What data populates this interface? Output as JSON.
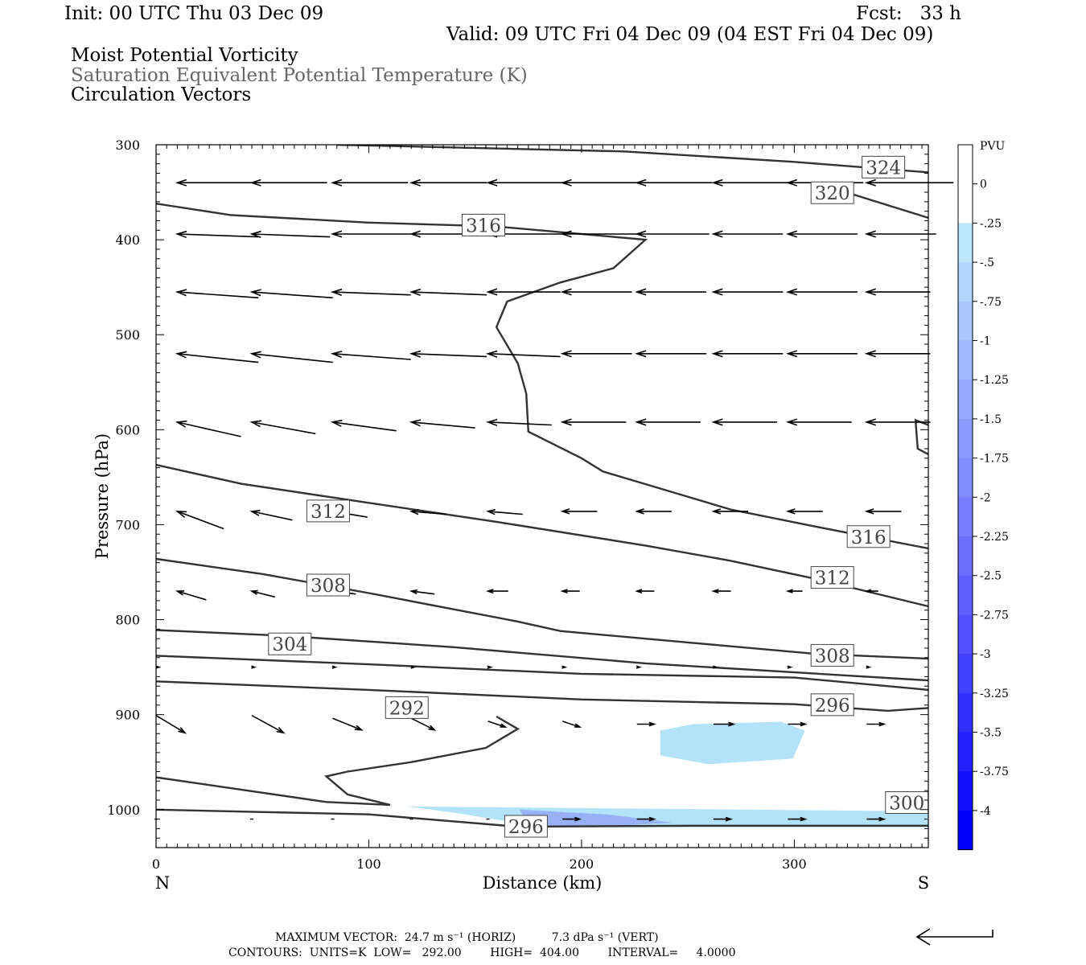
{
  "header": {
    "init": "Init: 00 UTC Thu 03 Dec 09",
    "fcst": "Fcst:   33 h",
    "valid": "Valid: 09 UTC Fri 04 Dec 09 (04 EST Fri 04 Dec 09)",
    "fields": [
      "Moist Potential Vorticity",
      "Saturation Equivalent Potential Temperature (K)",
      "Circulation Vectors"
    ]
  },
  "colorbar": {
    "unit": "PVU",
    "labels": [
      "0",
      "-.25",
      "-.5",
      "-.75",
      "-1",
      "-1.25",
      "-1.5",
      "-1.75",
      "-2",
      "-2.25",
      "-2.5",
      "-2.75",
      "-3",
      "-3.25",
      "-3.5",
      "-3.75",
      "-4"
    ],
    "colors": [
      "#ffffff",
      "#ffffff",
      "#bde6fb",
      "#b3d7fc",
      "#a9c8fd",
      "#9fb9fd",
      "#95aafd",
      "#8b9bfd",
      "#818cfd",
      "#777dfd",
      "#6d6efd",
      "#5f5ffd",
      "#5050fd",
      "#4040fd",
      "#3030fd",
      "#2020fd",
      "#1010fd",
      "#0000fd"
    ]
  },
  "chart_data": {
    "type": "cross-section",
    "title": "Moist Potential Vorticity / Saturation Equivalent Potential Temperature (K) / Circulation Vectors",
    "xlabel": "Distance (km)",
    "ylabel": "Pressure (hPa)",
    "xlim": [
      0,
      363
    ],
    "ylim": [
      1040,
      300
    ],
    "x_ticks": [
      0,
      100,
      200,
      300
    ],
    "y_ticks": [
      300,
      400,
      500,
      600,
      700,
      800,
      900,
      1000
    ],
    "x_end_labels": {
      "left": "N",
      "right": "S"
    },
    "contours": [
      {
        "level": 324,
        "label": "324",
        "points": [
          [
            85,
            300
          ],
          [
            220,
            307
          ],
          [
            300,
            318
          ],
          [
            363,
            329
          ]
        ],
        "label_at": [
          333,
          324
        ]
      },
      {
        "level": 320,
        "label": "320",
        "points": [
          [
            320,
            347
          ],
          [
            363,
            377
          ]
        ],
        "label_at": [
          309,
          351
        ]
      },
      {
        "level": 316,
        "label": "316",
        "points": [
          [
            0,
            362
          ],
          [
            35,
            374
          ],
          [
            100,
            382
          ],
          [
            160,
            386
          ],
          [
            230,
            400
          ],
          [
            215,
            430
          ],
          [
            190,
            445
          ],
          [
            165,
            465
          ],
          [
            160,
            492
          ],
          [
            170,
            530
          ],
          [
            174,
            562
          ],
          [
            175,
            602
          ],
          [
            200,
            630
          ],
          [
            210,
            644
          ],
          [
            240,
            664
          ],
          [
            270,
            684
          ],
          [
            310,
            702
          ],
          [
            363,
            725
          ]
        ],
        "label_at": [
          145,
          385
        ]
      },
      {
        "level": 316,
        "label": "316",
        "points": [
          [
            363,
            595
          ],
          [
            357,
            590
          ],
          [
            358,
            620
          ],
          [
            363,
            626
          ]
        ],
        "label_at": [
          326,
          713
        ]
      },
      {
        "level": 312,
        "label": "312",
        "points": [
          [
            0,
            637
          ],
          [
            40,
            657
          ],
          [
            100,
            677
          ],
          [
            160,
            697
          ],
          [
            230,
            722
          ],
          [
            270,
            738
          ],
          [
            310,
            757
          ],
          [
            363,
            786
          ]
        ],
        "label_at": [
          72,
          686
        ]
      },
      {
        "level": 312,
        "label": "312",
        "points": [],
        "label_at": [
          309,
          756
        ]
      },
      {
        "level": 308,
        "label": "308",
        "points": [
          [
            0,
            736
          ],
          [
            50,
            752
          ],
          [
            100,
            772
          ],
          [
            170,
            802
          ],
          [
            190,
            812
          ],
          [
            250,
            824
          ],
          [
            310,
            836
          ],
          [
            363,
            841
          ]
        ],
        "label_at": [
          72,
          764
        ]
      },
      {
        "level": 308,
        "label": "308",
        "points": [],
        "label_at": [
          309,
          838
        ]
      },
      {
        "level": 304,
        "label": "304",
        "points": [
          [
            0,
            811
          ],
          [
            60,
            817
          ],
          [
            140,
            829
          ],
          [
            230,
            846
          ],
          [
            363,
            864
          ]
        ],
        "label_at": [
          54,
          826
        ]
      },
      {
        "level": 300,
        "label": "300",
        "points": [
          [
            0,
            838
          ],
          [
            100,
            847
          ],
          [
            200,
            857
          ],
          [
            300,
            861
          ],
          [
            363,
            874
          ]
        ],
        "label_at": [
          344,
          993
        ]
      },
      {
        "level": 296,
        "label": "296",
        "points": [
          [
            0,
            865
          ],
          [
            100,
            874
          ],
          [
            200,
            884
          ],
          [
            300,
            889
          ],
          [
            344,
            896
          ],
          [
            363,
            893
          ]
        ],
        "label_at": [
          309,
          890
        ]
      },
      {
        "level": 296,
        "label": "296",
        "points": [
          [
            0,
            1000
          ],
          [
            100,
            1005
          ],
          [
            170,
            1018
          ],
          [
            250,
            1017
          ],
          [
            363,
            1017
          ]
        ],
        "label_at": [
          165,
          1018
        ]
      },
      {
        "level": 292,
        "label": "292",
        "points": [
          [
            0,
            966
          ],
          [
            80,
            992
          ],
          [
            110,
            995
          ],
          [
            90,
            984
          ],
          [
            80,
            965
          ],
          [
            90,
            960
          ],
          [
            120,
            950
          ],
          [
            155,
            935
          ],
          [
            170,
            915
          ],
          [
            160,
            902
          ]
        ],
        "label_at": [
          109,
          893
        ]
      }
    ],
    "pv_shading": [
      {
        "value_range": [
          -0.5,
          -0.25
        ],
        "region": "lower-middle",
        "x_range": [
          237,
          305
        ],
        "p_range": [
          910,
          948
        ]
      },
      {
        "value_range": [
          -1.5,
          -0.25
        ],
        "region": "near-surface",
        "x_range": [
          118,
          363
        ],
        "p_range": [
          995,
          1017
        ]
      }
    ],
    "vector_rows": [
      {
        "p": 340,
        "x": [
          10,
          45,
          83,
          120,
          156,
          191,
          226,
          262,
          297,
          334
        ],
        "u": [
          -26,
          -26,
          -26,
          -26,
          -26,
          -26,
          -26,
          -26,
          -26,
          -30
        ],
        "v": [
          0,
          0,
          0,
          0,
          0,
          0,
          0,
          0,
          0,
          0
        ]
      },
      {
        "p": 394,
        "x": [
          10,
          45,
          83,
          120,
          156,
          191,
          226,
          262,
          297,
          334
        ],
        "u": [
          -28,
          -27,
          -27,
          -27,
          -27,
          -27,
          -25,
          -24,
          -24,
          -24
        ],
        "v": [
          1,
          1,
          0,
          0,
          0,
          0,
          0,
          0,
          0,
          0
        ]
      },
      {
        "p": 455,
        "x": [
          10,
          45,
          83,
          120,
          156,
          191,
          226,
          262,
          297,
          334
        ],
        "u": [
          -28,
          -28,
          -27,
          -26,
          -25,
          -24,
          -24,
          -24,
          -24,
          -22
        ],
        "v": [
          2,
          2,
          1,
          1,
          0,
          0,
          0,
          0,
          0,
          0
        ]
      },
      {
        "p": 520,
        "x": [
          10,
          45,
          83,
          120,
          156,
          191,
          226,
          262,
          297,
          334
        ],
        "u": [
          -28,
          -28,
          -27,
          -26,
          -25,
          -24,
          -24,
          -24,
          -24,
          -22
        ],
        "v": [
          3,
          3,
          2,
          1,
          1,
          0,
          0,
          0,
          0,
          0
        ]
      },
      {
        "p": 592,
        "x": [
          10,
          45,
          83,
          120,
          156,
          191,
          226,
          262,
          297,
          334
        ],
        "u": [
          -22,
          -22,
          -22,
          -22,
          -22,
          -22,
          -22,
          -22,
          -22,
          -22
        ],
        "v": [
          5,
          4,
          3,
          2,
          1,
          0,
          0,
          0,
          0,
          0
        ]
      },
      {
        "p": 686,
        "x": [
          10,
          45,
          83,
          120,
          156,
          191,
          226,
          262,
          297,
          334
        ],
        "u": [
          -16,
          -14,
          -12,
          -12,
          -12,
          -12,
          -12,
          -12,
          -12,
          -12
        ],
        "v": [
          6,
          3,
          2,
          1,
          1,
          0,
          0,
          0,
          0,
          0
        ]
      },
      {
        "p": 770,
        "x": [
          10,
          45,
          83,
          120,
          156,
          191,
          226,
          262,
          297,
          334
        ],
        "u": [
          -10,
          -8,
          -8,
          -8,
          -7,
          -6,
          -6,
          -6,
          -5,
          -4
        ],
        "v": [
          3,
          2,
          1,
          1,
          0,
          0,
          0,
          0,
          0,
          0
        ]
      },
      {
        "p": 850,
        "x": [
          0,
          45,
          83,
          120,
          156,
          191,
          226,
          262,
          297,
          334
        ],
        "u": [
          1,
          1,
          1,
          1,
          1,
          1,
          1,
          1,
          1,
          1
        ],
        "v": [
          0,
          0,
          0,
          0,
          0,
          0,
          0,
          0,
          0,
          0
        ]
      },
      {
        "p": 910,
        "x": [
          0,
          45,
          83,
          120,
          156,
          191,
          226,
          262,
          297,
          334
        ],
        "u": [
          10,
          11,
          10,
          8,
          6,
          6,
          6,
          7,
          6,
          6
        ],
        "v": [
          -3,
          -3,
          -2,
          -2,
          -1,
          -1,
          0,
          0,
          0,
          0
        ]
      },
      {
        "p": 1010,
        "x": [
          0,
          45,
          83,
          120,
          156,
          191,
          226,
          262,
          297,
          334
        ],
        "u": [
          0,
          0,
          0,
          0,
          0,
          6,
          6,
          6,
          6,
          6
        ],
        "v": [
          0,
          0,
          0,
          0,
          0,
          0,
          0,
          0,
          0,
          0
        ]
      }
    ]
  },
  "footer": {
    "line1": "MAXIMUM VECTOR:  24.7 m s⁻¹ (HORIZ)          7.3 dPa s⁻¹ (VERT)",
    "line2": "CONTOURS:  UNITS=K  LOW=   292.00        HIGH=  404.00        INTERVAL=     4.0000"
  }
}
